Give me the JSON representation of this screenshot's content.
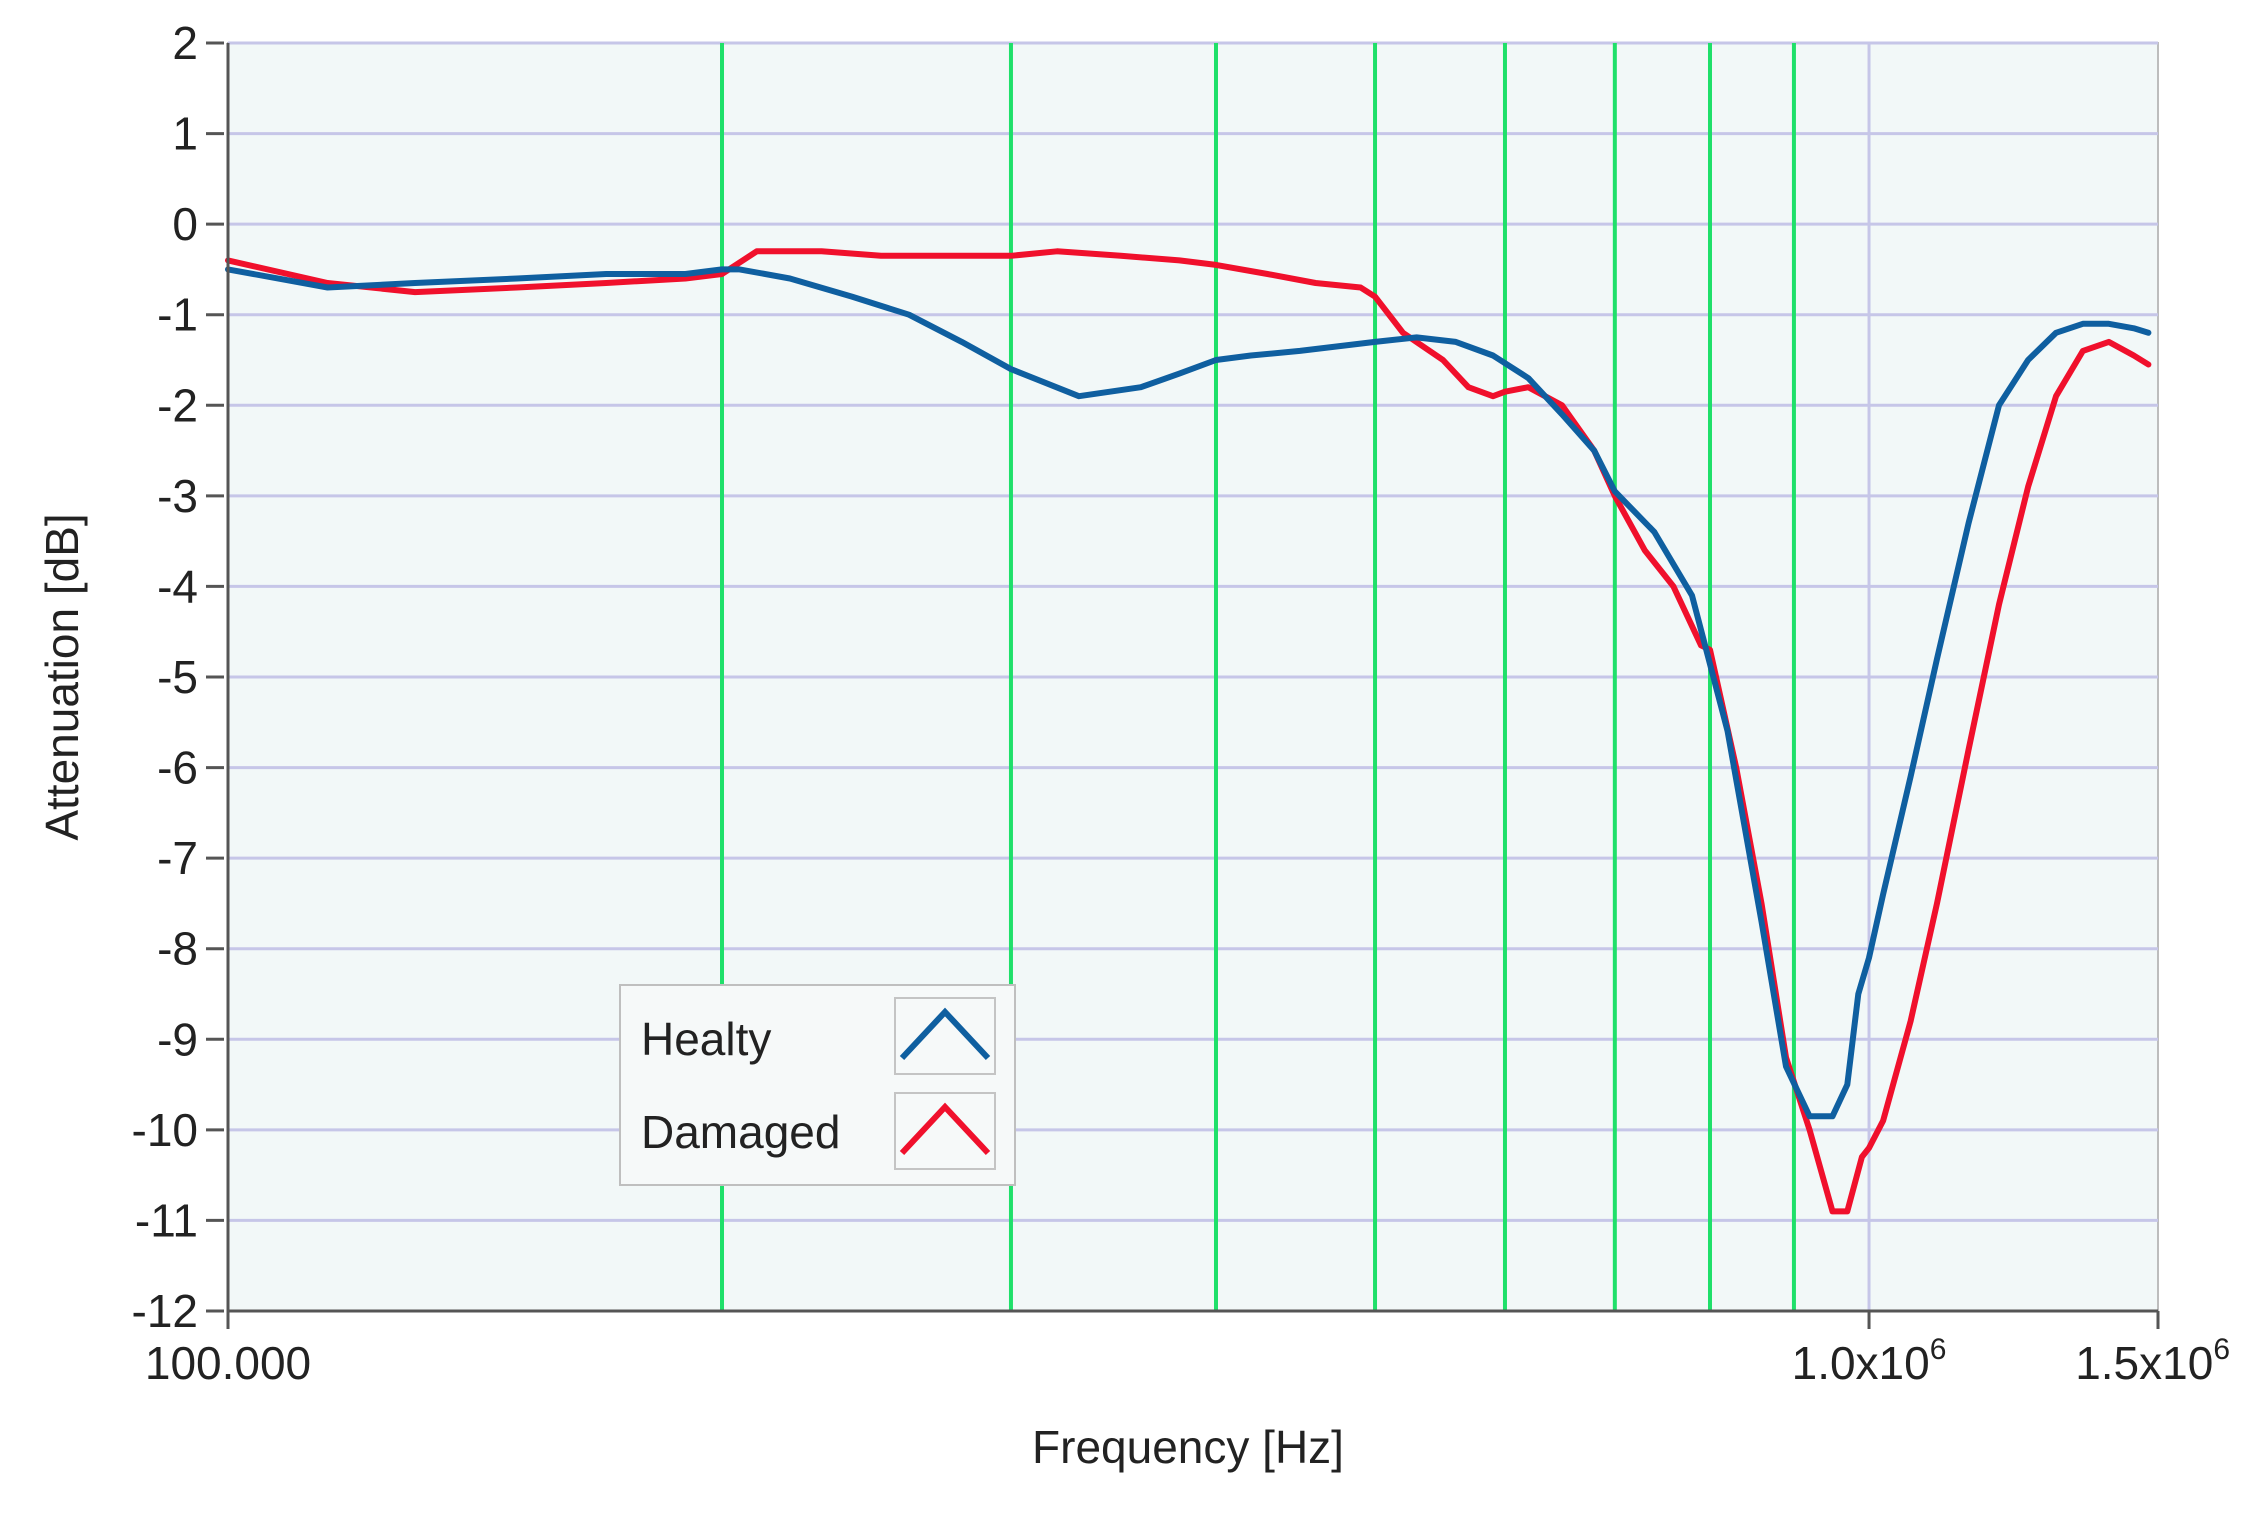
{
  "chart_data": {
    "type": "line",
    "title": "",
    "xlabel": "Frequency [Hz]",
    "ylabel": "Attenuation [dB]",
    "x_scale": "log",
    "xlim": [
      100000,
      1500000
    ],
    "ylim": [
      -12,
      2
    ],
    "x_tick_labels": [
      {
        "value": 100000,
        "base": "100.000",
        "exp": ""
      },
      {
        "value": 1000000,
        "base": "1.0x10",
        "exp": "6"
      },
      {
        "value": 1500000,
        "base": "1.5x10",
        "exp": "6"
      }
    ],
    "y_ticks": [
      2,
      1,
      0,
      -1,
      -2,
      -3,
      -4,
      -5,
      -6,
      -7,
      -8,
      -9,
      -10,
      -11,
      -12
    ],
    "vertical_markers": [
      200000,
      300000,
      400000,
      500000,
      600000,
      700000,
      800000,
      900000
    ],
    "grid": true,
    "legend": {
      "position": "lower-left"
    },
    "colors": {
      "background": "#f2f8f8",
      "grid": "#c6c6e8",
      "marker": "#1fe06a",
      "axis": "#555555"
    },
    "series": [
      {
        "name": "Healty",
        "color": "#0f5fa0",
        "x": [
          100000,
          115000,
          130000,
          150000,
          170000,
          190000,
          200000,
          205000,
          220000,
          240000,
          260000,
          280000,
          300000,
          330000,
          360000,
          380000,
          400000,
          420000,
          450000,
          500000,
          530000,
          560000,
          590000,
          620000,
          650000,
          680000,
          700000,
          740000,
          780000,
          820000,
          860000,
          890000,
          920000,
          950000,
          970000,
          985000,
          1000000,
          1020000,
          1060000,
          1100000,
          1150000,
          1200000,
          1250000,
          1300000,
          1350000,
          1400000,
          1450000,
          1480000
        ],
        "y": [
          -0.5,
          -0.7,
          -0.65,
          -0.6,
          -0.55,
          -0.55,
          -0.5,
          -0.5,
          -0.6,
          -0.8,
          -1.0,
          -1.3,
          -1.6,
          -1.9,
          -1.8,
          -1.65,
          -1.5,
          -1.45,
          -1.4,
          -1.3,
          -1.25,
          -1.3,
          -1.45,
          -1.7,
          -2.1,
          -2.5,
          -2.95,
          -3.4,
          -4.1,
          -5.6,
          -7.7,
          -9.3,
          -9.85,
          -9.85,
          -9.5,
          -8.5,
          -8.1,
          -7.4,
          -6.1,
          -4.8,
          -3.3,
          -2.0,
          -1.5,
          -1.2,
          -1.1,
          -1.1,
          -1.15,
          -1.2
        ]
      },
      {
        "name": "Damaged",
        "color": "#f0102c",
        "x": [
          100000,
          115000,
          130000,
          150000,
          170000,
          190000,
          200000,
          210000,
          230000,
          250000,
          280000,
          300000,
          320000,
          350000,
          380000,
          400000,
          430000,
          460000,
          490000,
          500000,
          520000,
          550000,
          570000,
          590000,
          600000,
          620000,
          650000,
          680000,
          700000,
          730000,
          760000,
          790000,
          800000,
          830000,
          860000,
          890000,
          920000,
          950000,
          970000,
          990000,
          1000000,
          1020000,
          1060000,
          1100000,
          1150000,
          1200000,
          1250000,
          1300000,
          1350000,
          1400000,
          1450000,
          1480000
        ],
        "y": [
          -0.4,
          -0.65,
          -0.75,
          -0.7,
          -0.65,
          -0.6,
          -0.55,
          -0.3,
          -0.3,
          -0.35,
          -0.35,
          -0.35,
          -0.3,
          -0.35,
          -0.4,
          -0.45,
          -0.55,
          -0.65,
          -0.7,
          -0.8,
          -1.2,
          -1.5,
          -1.8,
          -1.9,
          -1.85,
          -1.8,
          -2.0,
          -2.5,
          -3.0,
          -3.6,
          -4.0,
          -4.65,
          -4.7,
          -6.0,
          -7.5,
          -9.2,
          -10.0,
          -10.9,
          -10.9,
          -10.3,
          -10.2,
          -9.9,
          -8.8,
          -7.5,
          -5.8,
          -4.2,
          -2.9,
          -1.9,
          -1.4,
          -1.3,
          -1.45,
          -1.55
        ]
      }
    ]
  }
}
